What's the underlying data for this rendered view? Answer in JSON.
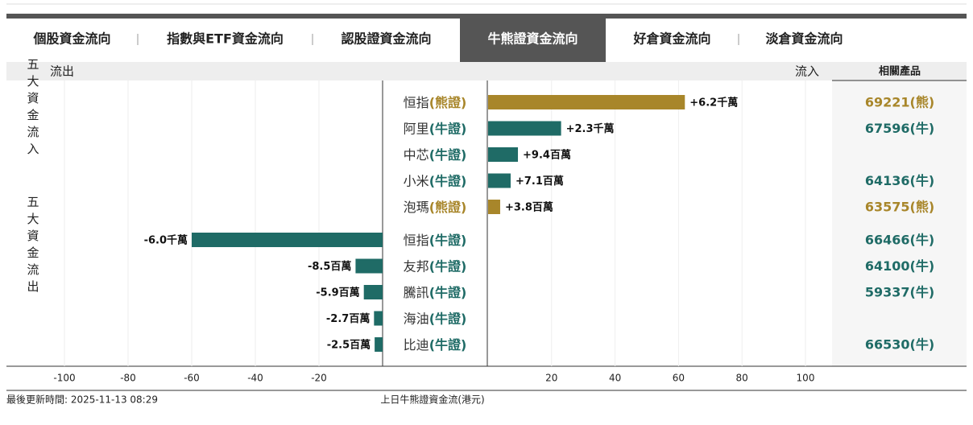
{
  "tabs": [
    "個股資金流向",
    "指數與ETF資金流向",
    "認股證資金流向",
    "牛熊證資金流向",
    "好倉資金流向",
    "淡倉資金流向"
  ],
  "active_tab": 3,
  "header": {
    "outflow": "流出",
    "inflow": "流入",
    "products": "相關產品"
  },
  "chart_data": {
    "type": "diverging-bar",
    "x_label": "上日牛熊證資金流(港元)",
    "xlim": [
      -100,
      100
    ],
    "xticks": [
      -100,
      -80,
      -60,
      -40,
      -20,
      20,
      40,
      60,
      80,
      100
    ],
    "grid": true,
    "groups": [
      {
        "label": "五大資金流入",
        "rows": [
          {
            "name": "恒指",
            "tag": "(熊證)",
            "color": "#a8862a",
            "value": 62,
            "value_label": "+6.2千萬",
            "product": "69221(熊)"
          },
          {
            "name": "阿里",
            "tag": "(牛證)",
            "color": "#1f6b66",
            "value": 23,
            "value_label": "+2.3千萬",
            "product": "67596(牛)"
          },
          {
            "name": "中芯",
            "tag": "(牛證)",
            "color": "#1f6b66",
            "value": 9.4,
            "value_label": "+9.4百萬",
            "product": null
          },
          {
            "name": "小米",
            "tag": "(牛證)",
            "color": "#1f6b66",
            "value": 7.1,
            "value_label": "+7.1百萬",
            "product": "64136(牛)"
          },
          {
            "name": "泡瑪",
            "tag": "(熊證)",
            "color": "#a8862a",
            "value": 3.8,
            "value_label": "+3.8百萬",
            "product": "63575(熊)"
          }
        ]
      },
      {
        "label": "五大資金流出",
        "rows": [
          {
            "name": "恒指",
            "tag": "(牛證)",
            "color": "#1f6b66",
            "value": -60,
            "value_label": "-6.0千萬",
            "product": "66466(牛)"
          },
          {
            "name": "友邦",
            "tag": "(牛證)",
            "color": "#1f6b66",
            "value": -8.5,
            "value_label": "-8.5百萬",
            "product": "64100(牛)"
          },
          {
            "name": "騰訊",
            "tag": "(牛證)",
            "color": "#1f6b66",
            "value": -5.9,
            "value_label": "-5.9百萬",
            "product": "59337(牛)"
          },
          {
            "name": "海油",
            "tag": "(牛證)",
            "color": "#1f6b66",
            "value": -2.7,
            "value_label": "-2.7百萬",
            "product": null
          },
          {
            "name": "比迪",
            "tag": "(牛證)",
            "color": "#1f6b66",
            "value": -2.5,
            "value_label": "-2.5百萬",
            "product": "66530(牛)"
          }
        ]
      }
    ]
  },
  "footer": {
    "updated": "最後更新時間: 2025-11-13 08:29"
  }
}
